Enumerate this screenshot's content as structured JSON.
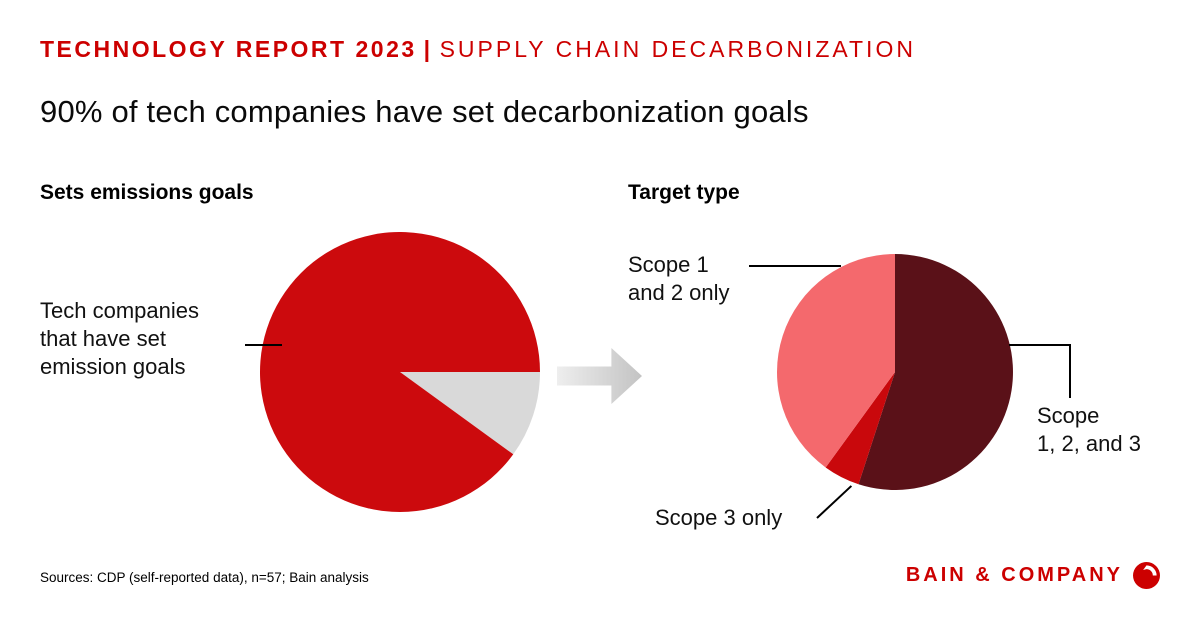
{
  "header": {
    "eyebrow_bold": "TECHNOLOGY REPORT 2023",
    "eyebrow_separator": "|",
    "eyebrow_light": "SUPPLY CHAIN DECARBONIZATION",
    "title": "90% of tech companies have set decarbonization goals"
  },
  "left_chart": {
    "heading": "Sets emissions goals",
    "callout": "Tech companies\nthat have set\nemission goals"
  },
  "right_chart": {
    "heading": "Target type",
    "label_scope12": "Scope 1\nand 2 only",
    "label_scope3": "Scope 3 only",
    "label_scope123": "Scope\n1, 2, and 3"
  },
  "footer": {
    "sources": "Sources: CDP (self-reported data), n=57; Bain analysis",
    "brand": "BAIN & COMPANY"
  },
  "colors": {
    "brand_red": "#cc0000",
    "pie_red": "#cc0a0d",
    "pie_gray": "#d9d9d9",
    "pie_dark_red": "#5a1118",
    "pie_bright_red": "#c9080c",
    "pie_light_red": "#f4696d",
    "arrow_gradient_start": "#eeeeee",
    "arrow_gradient_end": "#c3c3c3",
    "leader_line": "#000000"
  },
  "chart_data": [
    {
      "type": "pie",
      "title": "Sets emissions goals",
      "start_angle_deg": 90,
      "slices": [
        {
          "label": "",
          "value": 10,
          "color": "#d9d9d9"
        },
        {
          "label": "Tech companies that have set emission goals",
          "value": 90,
          "color": "#cc0a0d"
        }
      ]
    },
    {
      "type": "pie",
      "title": "Target type",
      "start_angle_deg": 0,
      "slices": [
        {
          "label": "Scope 1, 2, and 3",
          "value": 55,
          "color": "#5a1118"
        },
        {
          "label": "Scope 3 only",
          "value": 5,
          "color": "#c9080c"
        },
        {
          "label": "Scope 1 and 2 only",
          "value": 40,
          "color": "#f4696d"
        }
      ]
    }
  ]
}
